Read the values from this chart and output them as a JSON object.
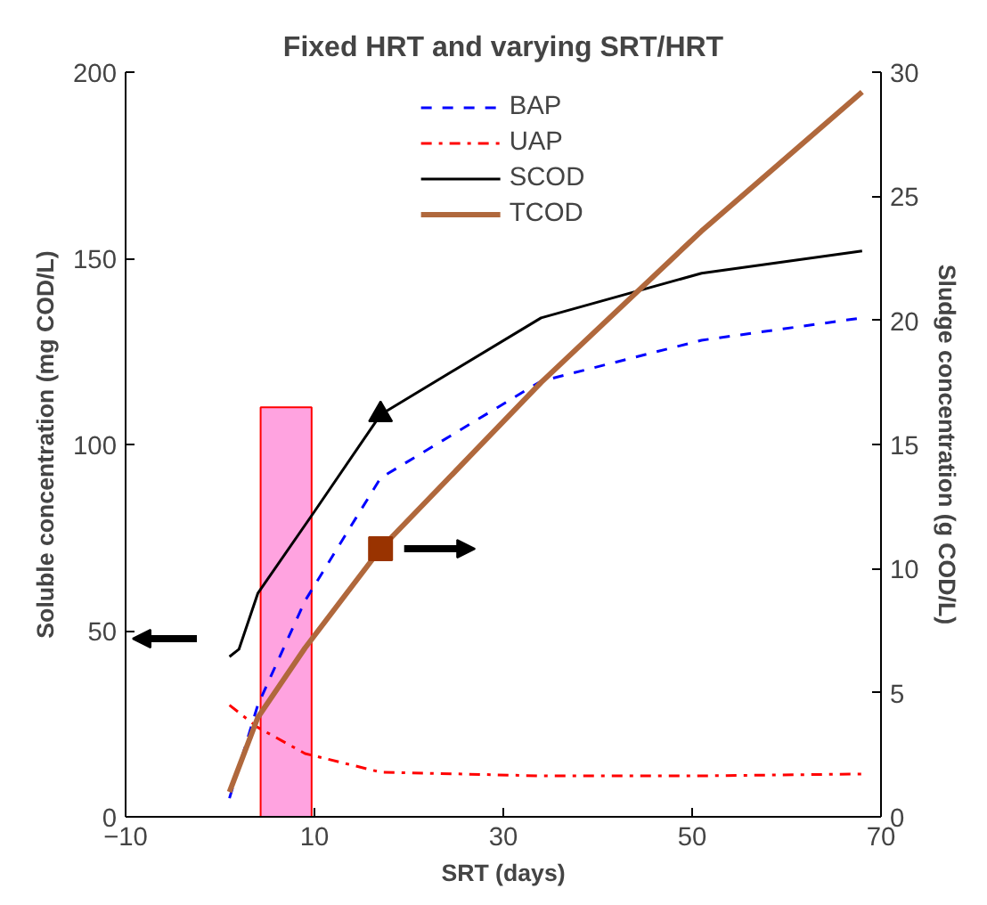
{
  "chart_data": {
    "type": "line",
    "title": "Fixed HRT and varying SRT/HRT",
    "xlabel": "SRT (days)",
    "ylabel": "Soluble concentration (mg COD/L)",
    "y2label": "Sludge concentration (g COD/L)",
    "xlim": [
      -10,
      70
    ],
    "xticks": [
      -10,
      10,
      30,
      50,
      70
    ],
    "ylim": [
      0,
      200
    ],
    "yticks": [
      0,
      50,
      100,
      150,
      200
    ],
    "y2lim": [
      0,
      30
    ],
    "y2ticks": [
      0,
      5,
      10,
      15,
      20,
      25,
      30
    ],
    "grid": false,
    "legend": "top",
    "marker": "none",
    "series": [
      {
        "type": "bar",
        "color": "#ff66cc",
        "x": [
          7
        ],
        "values": [
          110
        ]
      },
      {
        "name": "BAP",
        "color": "#0000ff",
        "line_style": "dashed",
        "x": [
          1,
          4,
          9,
          17,
          34,
          51,
          68
        ],
        "values": [
          5,
          30,
          58,
          91,
          117,
          128,
          134
        ]
      },
      {
        "name": "UAP",
        "color": "#ff0000",
        "line_style": "dashdot",
        "x": [
          1,
          4,
          9,
          17,
          34,
          51,
          68
        ],
        "values": [
          30,
          24,
          17,
          12,
          11,
          11,
          11.5
        ]
      },
      {
        "name": "SCOD",
        "color": "#000000",
        "line_style": "solid",
        "x": [
          1,
          2,
          4,
          10,
          17,
          34,
          51,
          68
        ],
        "values": [
          43,
          45,
          60,
          82,
          108,
          134,
          146,
          152
        ]
      },
      {
        "name": "TCOD",
        "color": "#b0683c",
        "line_style": "solid",
        "axis": "y2",
        "x": [
          1,
          4,
          9,
          17,
          34,
          51,
          68
        ],
        "values": [
          1,
          4,
          6.8,
          10.8,
          17.5,
          23.6,
          29.2
        ]
      },
      {
        "type": "scatter",
        "marker": "triangle",
        "color": "#000000",
        "x": [
          17
        ],
        "values": [
          108
        ]
      },
      {
        "type": "scatter",
        "marker": "square",
        "color": "#993300",
        "axis": "y2",
        "x": [
          17
        ],
        "values": [
          10.8
        ]
      }
    ]
  }
}
